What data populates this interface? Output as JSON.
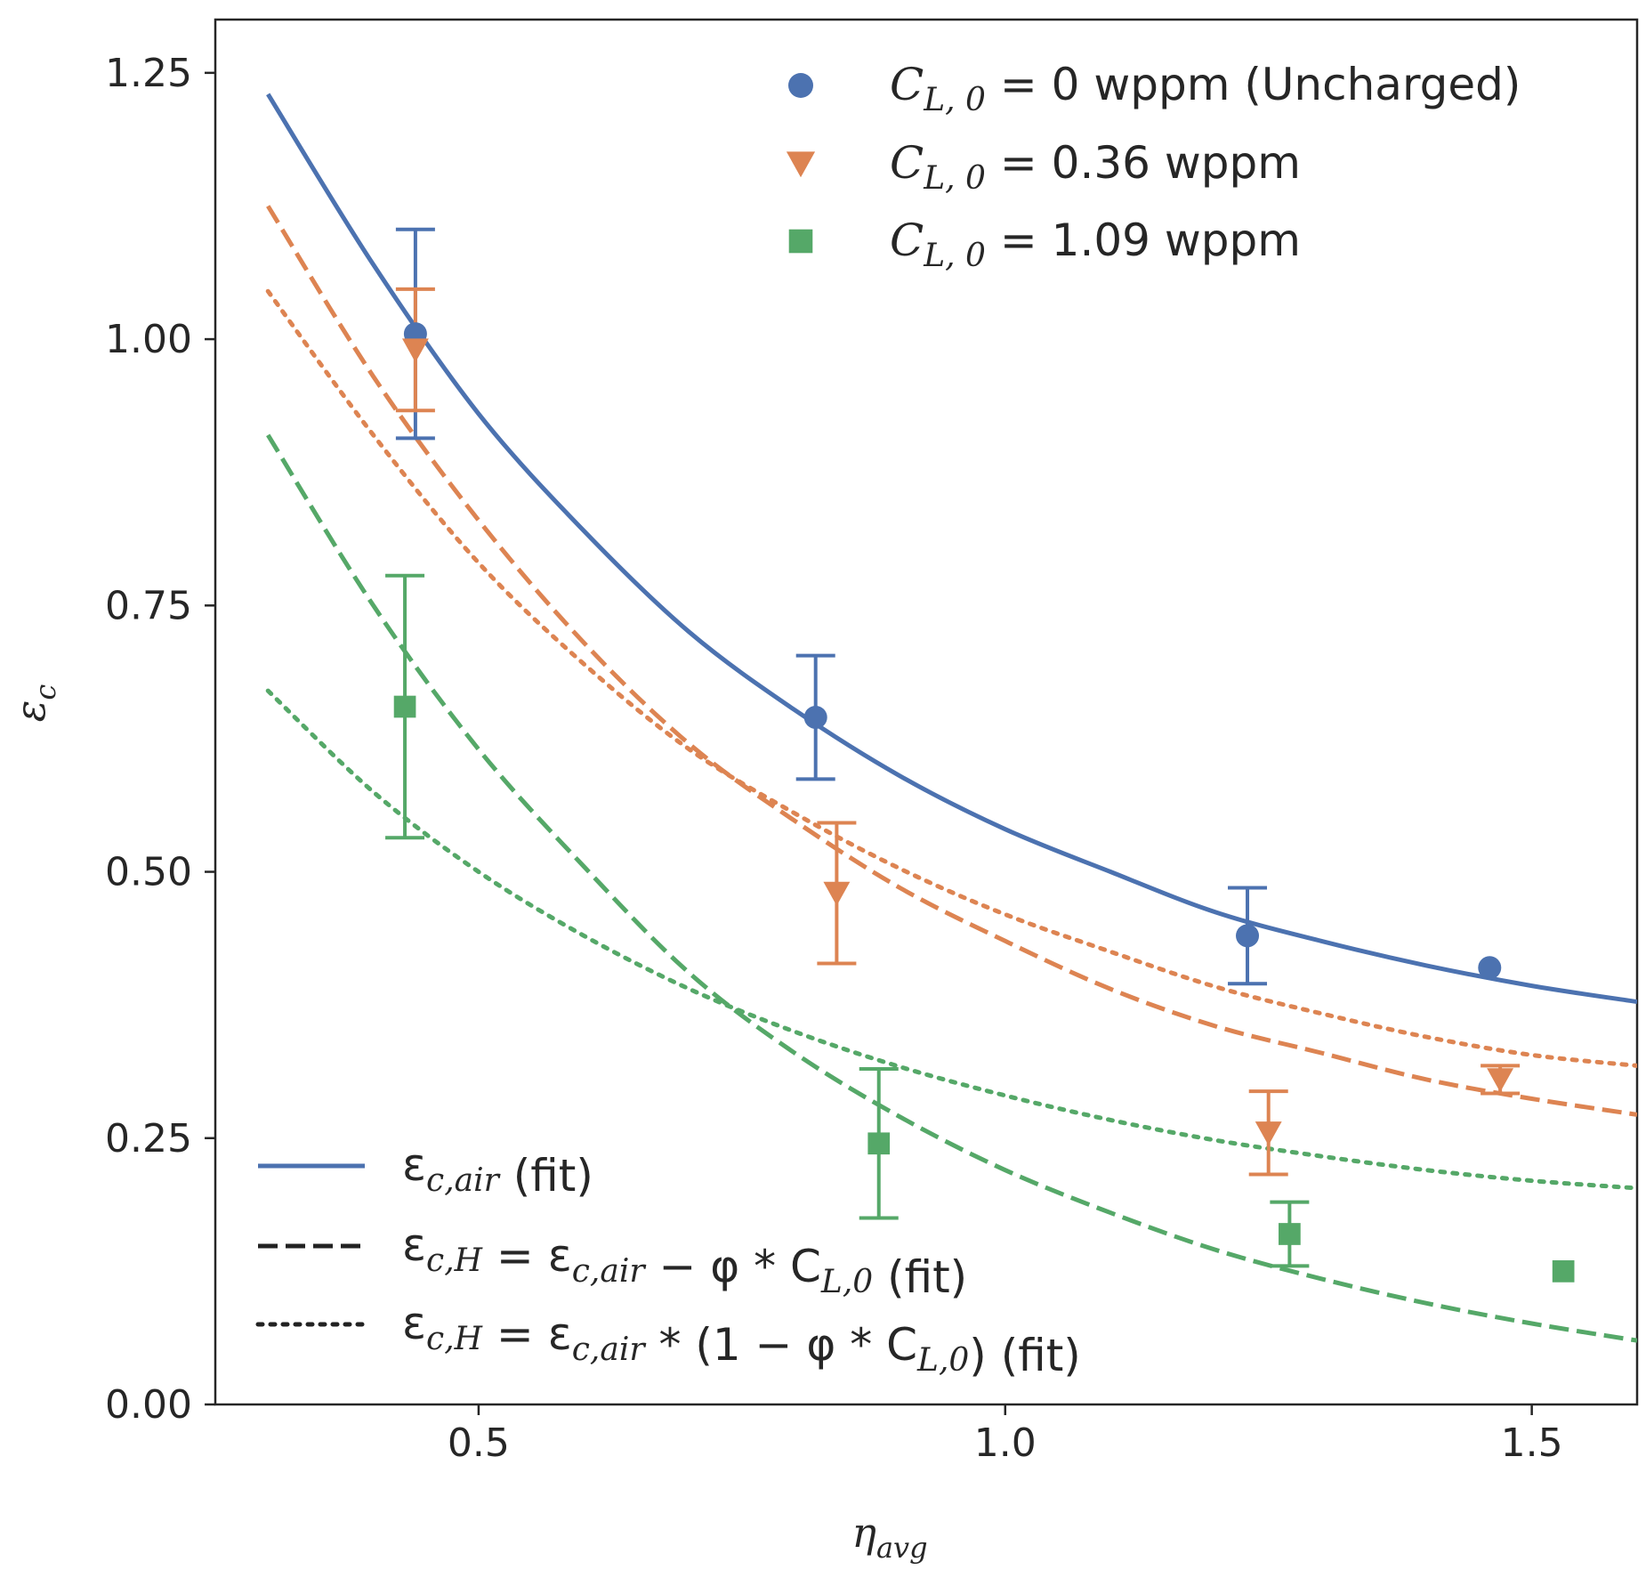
{
  "chart_data": {
    "type": "scatter",
    "xlabel": "η",
    "xlabel_sub": "avg",
    "ylabel": "ε",
    "ylabel_sub": "c",
    "xlim": [
      0.25,
      1.6
    ],
    "ylim": [
      0.0,
      1.3
    ],
    "xticks": [
      0.5,
      1.0,
      1.5
    ],
    "xtick_labels": [
      "0.5",
      "1.0",
      "1.5"
    ],
    "yticks": [
      0.0,
      0.25,
      0.5,
      0.75,
      1.0,
      1.25
    ],
    "ytick_labels": [
      "0.00",
      "0.25",
      "0.50",
      "0.75",
      "1.00",
      "1.25"
    ],
    "grid": false,
    "legend_markers_position": "top-right",
    "legend_lines_position": "bottom-left",
    "series": [
      {
        "name": "C_{L,0} = 0 wppm (Uncharged)",
        "legend_text": "= 0 wppm (Uncharged)",
        "color": "#4c72b0",
        "marker": "circle",
        "points": [
          {
            "x": 0.44,
            "y": 1.005,
            "err": 0.098
          },
          {
            "x": 0.82,
            "y": 0.645,
            "err": 0.058
          },
          {
            "x": 1.23,
            "y": 0.44,
            "err": 0.045
          },
          {
            "x": 1.46,
            "y": 0.41,
            "err": null
          }
        ]
      },
      {
        "name": "C_{L,0} = 0.36 wppm",
        "legend_text": "= 0.36 wppm",
        "color": "#dd8452",
        "marker": "triangle-down",
        "points": [
          {
            "x": 0.44,
            "y": 0.99,
            "err": 0.057
          },
          {
            "x": 0.84,
            "y": 0.48,
            "err": 0.066
          },
          {
            "x": 1.25,
            "y": 0.255,
            "err": 0.039
          },
          {
            "x": 1.47,
            "y": 0.305,
            "err": 0.013
          }
        ]
      },
      {
        "name": "C_{L,0} = 1.09 wppm",
        "legend_text": "= 1.09 wppm",
        "color": "#55a868",
        "marker": "square",
        "points": [
          {
            "x": 0.43,
            "y": 0.655,
            "err": 0.123
          },
          {
            "x": 0.88,
            "y": 0.245,
            "err": 0.07
          },
          {
            "x": 1.27,
            "y": 0.16,
            "err": 0.03
          },
          {
            "x": 1.53,
            "y": 0.125,
            "err": null
          }
        ]
      }
    ],
    "fits": {
      "x_range": [
        0.3,
        1.6
      ],
      "air": [
        [
          0.3,
          1.23
        ],
        [
          0.4,
          1.07
        ],
        [
          0.5,
          0.93
        ],
        [
          0.6,
          0.82
        ],
        [
          0.7,
          0.725
        ],
        [
          0.8,
          0.652
        ],
        [
          0.9,
          0.59
        ],
        [
          1.0,
          0.54
        ],
        [
          1.1,
          0.5
        ],
        [
          1.2,
          0.462
        ],
        [
          1.3,
          0.435
        ],
        [
          1.4,
          0.412
        ],
        [
          1.5,
          0.393
        ],
        [
          1.6,
          0.378
        ]
      ],
      "H_dashed": [
        {
          "color": "#dd8452",
          "points": [
            [
              0.3,
              1.125
            ],
            [
              0.4,
              0.965
            ],
            [
              0.5,
              0.83
            ],
            [
              0.6,
              0.715
            ],
            [
              0.7,
              0.62
            ],
            [
              0.8,
              0.548
            ],
            [
              0.9,
              0.485
            ],
            [
              1.0,
              0.435
            ],
            [
              1.1,
              0.39
            ],
            [
              1.2,
              0.355
            ],
            [
              1.3,
              0.33
            ],
            [
              1.4,
              0.305
            ],
            [
              1.5,
              0.287
            ],
            [
              1.6,
              0.272
            ]
          ]
        },
        {
          "color": "#55a868",
          "points": [
            [
              0.3,
              0.91
            ],
            [
              0.4,
              0.75
            ],
            [
              0.5,
              0.615
            ],
            [
              0.6,
              0.505
            ],
            [
              0.7,
              0.405
            ],
            [
              0.8,
              0.33
            ],
            [
              0.9,
              0.27
            ],
            [
              1.0,
              0.22
            ],
            [
              1.1,
              0.18
            ],
            [
              1.2,
              0.145
            ],
            [
              1.3,
              0.118
            ],
            [
              1.4,
              0.095
            ],
            [
              1.5,
              0.076
            ],
            [
              1.6,
              0.06
            ]
          ]
        }
      ],
      "H_dotted": [
        {
          "color": "#dd8452",
          "points": [
            [
              0.3,
              1.045
            ],
            [
              0.4,
              0.91
            ],
            [
              0.5,
              0.79
            ],
            [
              0.6,
              0.695
            ],
            [
              0.7,
              0.615
            ],
            [
              0.8,
              0.555
            ],
            [
              0.9,
              0.503
            ],
            [
              1.0,
              0.46
            ],
            [
              1.1,
              0.425
            ],
            [
              1.2,
              0.392
            ],
            [
              1.3,
              0.367
            ],
            [
              1.4,
              0.345
            ],
            [
              1.5,
              0.328
            ],
            [
              1.6,
              0.318
            ]
          ]
        },
        {
          "color": "#55a868",
          "points": [
            [
              0.3,
              0.67
            ],
            [
              0.4,
              0.575
            ],
            [
              0.5,
              0.5
            ],
            [
              0.6,
              0.44
            ],
            [
              0.7,
              0.39
            ],
            [
              0.8,
              0.35
            ],
            [
              0.9,
              0.317
            ],
            [
              1.0,
              0.29
            ],
            [
              1.1,
              0.267
            ],
            [
              1.2,
              0.248
            ],
            [
              1.3,
              0.233
            ],
            [
              1.4,
              0.22
            ],
            [
              1.5,
              0.21
            ],
            [
              1.6,
              0.203
            ]
          ]
        }
      ]
    },
    "line_legend": [
      {
        "style": "solid",
        "color": "#4c72b0",
        "label": "ε_{c,air} (fit)"
      },
      {
        "style": "dashed",
        "color": "#222222",
        "label": "ε_{c,H} = ε_{c,air} − φ * C_{L,0} (fit)"
      },
      {
        "style": "dotted",
        "color": "#222222",
        "label": "ε_{c,H} = ε_{c,air} * (1 − φ * C_{L,0}) (fit)"
      }
    ]
  }
}
